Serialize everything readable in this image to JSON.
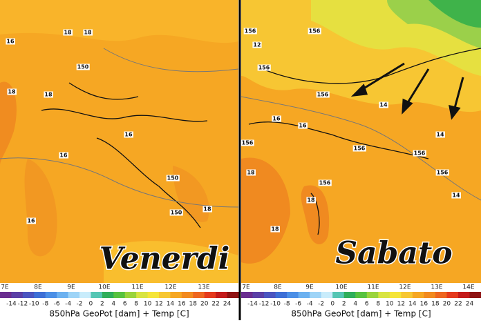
{
  "panels": [
    {
      "title": "Venerdi",
      "contour_labels": [
        "18",
        "16",
        "18",
        "150",
        "18",
        "18",
        "16",
        "16",
        "150",
        "150",
        "18",
        "16"
      ],
      "lon_labels": [
        "7E",
        "8E",
        "9E",
        "10E",
        "11E",
        "12E",
        "13E"
      ],
      "colorbar_labels": [
        -14,
        -12,
        -10,
        -8,
        -6,
        -4,
        -2,
        0,
        2,
        4,
        6,
        8,
        10,
        12,
        14,
        16,
        18,
        20,
        22,
        24
      ],
      "caption": "850hPa GeoPot [dam] + Temp [C]"
    },
    {
      "title": "Sabato",
      "contour_labels": [
        "156",
        "12",
        "156",
        "156",
        "156",
        "14",
        "16",
        "156",
        "16",
        "156",
        "156",
        "14",
        "156",
        "18",
        "156",
        "18",
        "18",
        "14"
      ],
      "lon_labels": [
        "7E",
        "8E",
        "9E",
        "10E",
        "11E",
        "12E",
        "13E",
        "14E"
      ],
      "colorbar_labels": [
        -14,
        -12,
        -10,
        -8,
        -6,
        -4,
        -2,
        0,
        2,
        4,
        6,
        8,
        10,
        12,
        14,
        16,
        18,
        20,
        22,
        24
      ],
      "caption": "850hPa GeoPot [dam] + Temp [C]"
    }
  ]
}
